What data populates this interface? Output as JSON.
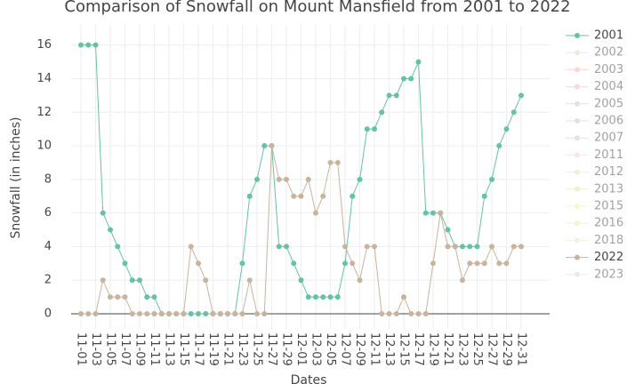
{
  "chart_data": {
    "type": "line",
    "title": "Comparison of Snowfall on Mount Mansfield from 2001 to 2022",
    "x_label": "Dates",
    "y_label": "Snowfall (in inches)",
    "categories": [
      "11-01",
      null,
      "11-03",
      null,
      "11-05",
      null,
      "11-07",
      null,
      "11-09",
      null,
      "11-11",
      null,
      "11-13",
      null,
      "11-15",
      null,
      "11-17",
      null,
      "11-19",
      null,
      "11-21",
      null,
      "11-23",
      null,
      "11-25",
      null,
      "11-27",
      null,
      "11-29",
      null,
      "12-01",
      null,
      "12-03",
      null,
      "12-05",
      null,
      "12-07",
      null,
      "12-09",
      null,
      "12-11",
      null,
      "12-13",
      null,
      "12-15",
      null,
      "12-17",
      null,
      "12-19",
      null,
      "12-21",
      null,
      "12-23",
      null,
      "12-25",
      null,
      "12-27",
      null,
      "12-29",
      null,
      "12-31"
    ],
    "ylim": [
      -0.9,
      17.2
    ],
    "yticks": [
      0,
      2,
      4,
      6,
      8,
      10,
      12,
      14,
      16
    ],
    "grid": true,
    "series": [
      {
        "name": "2001",
        "color": "#66c2a5",
        "visible": true,
        "values": [
          16,
          16,
          16,
          6,
          5,
          4,
          3,
          2,
          2,
          1,
          1,
          0,
          0,
          0,
          0,
          0,
          0,
          0,
          0,
          0,
          0,
          0,
          3,
          7,
          8,
          10,
          10,
          4,
          4,
          3,
          2,
          1,
          1,
          1,
          1,
          1,
          3,
          7,
          8,
          11,
          11,
          12,
          13,
          13,
          14,
          14,
          15,
          6,
          6,
          6,
          5,
          4,
          4,
          4,
          4,
          7,
          8,
          10,
          11,
          12,
          13
        ]
      },
      {
        "name": "2002",
        "color": "#e5d3b0",
        "visible": false
      },
      {
        "name": "2003",
        "color": "#f4b7a8",
        "visible": false
      },
      {
        "name": "2004",
        "color": "#eeb0bd",
        "visible": false
      },
      {
        "name": "2005",
        "color": "#c7c1e0",
        "visible": false
      },
      {
        "name": "2006",
        "color": "#c3bde3",
        "visible": false
      },
      {
        "name": "2007",
        "color": "#e3b7de",
        "visible": false
      },
      {
        "name": "2011",
        "color": "#f0c8dc",
        "visible": false
      },
      {
        "name": "2012",
        "color": "#d9e6ad",
        "visible": false
      },
      {
        "name": "2013",
        "color": "#dde89a",
        "visible": false
      },
      {
        "name": "2015",
        "color": "#f6ea9c",
        "visible": false
      },
      {
        "name": "2016",
        "color": "#f8e58c",
        "visible": false
      },
      {
        "name": "2018",
        "color": "#f2dfbd",
        "visible": false
      },
      {
        "name": "2022",
        "color": "#c8b49c",
        "visible": true,
        "values": [
          0,
          0,
          0,
          2,
          1,
          1,
          1,
          0,
          0,
          0,
          0,
          0,
          0,
          0,
          0,
          4,
          3,
          2,
          0,
          0,
          0,
          0,
          0,
          2,
          0,
          0,
          10,
          8,
          8,
          7,
          7,
          8,
          6,
          7,
          9,
          9,
          4,
          3,
          2,
          4,
          4,
          0,
          0,
          0,
          1,
          0,
          0,
          0,
          3,
          6,
          4,
          4,
          2,
          3,
          3,
          3,
          4,
          3,
          3,
          4,
          4
        ]
      },
      {
        "name": "2023",
        "color": "#d6d6d6",
        "visible": false
      }
    ]
  }
}
